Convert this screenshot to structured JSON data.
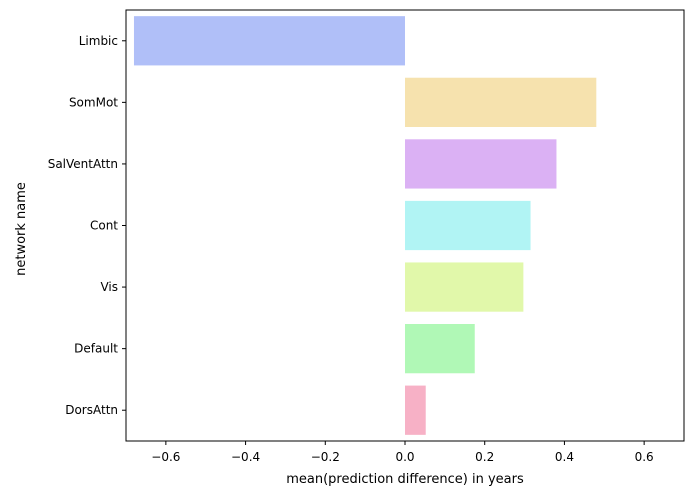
{
  "chart_data": {
    "type": "bar",
    "orientation": "horizontal",
    "title": "",
    "xlabel": "mean(prediction difference) in years",
    "ylabel": "network name",
    "xlim": [
      -0.7,
      0.7
    ],
    "xticks": [
      -0.6,
      -0.4,
      -0.2,
      0.0,
      0.2,
      0.4,
      0.6
    ],
    "xtick_labels": [
      "−0.6",
      "−0.4",
      "−0.2",
      "0.0",
      "0.2",
      "0.4",
      "0.6"
    ],
    "grid": false,
    "legend": "none",
    "categories": [
      "Limbic",
      "SomMot",
      "SalVentAttn",
      "Cont",
      "Vis",
      "Default",
      "DorsAttn"
    ],
    "values": [
      -0.68,
      0.48,
      0.38,
      0.315,
      0.297,
      0.175,
      0.052
    ],
    "colors": [
      "#b0bff8",
      "#f6e2ae",
      "#dbb1f4",
      "#b1f4f4",
      "#e1f8aa",
      "#b0f8b6",
      "#f7b1c6"
    ]
  }
}
